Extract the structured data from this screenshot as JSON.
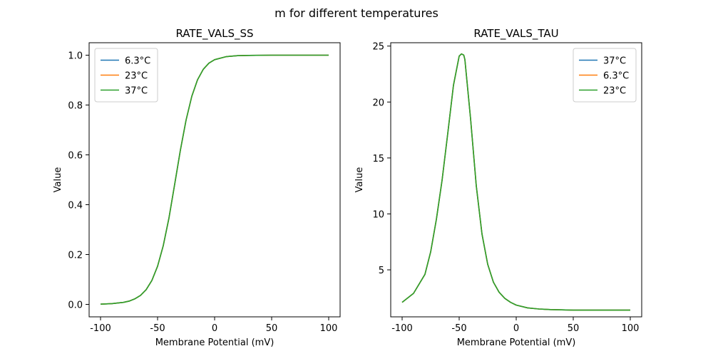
{
  "figure": {
    "suptitle": "m for different temperatures"
  },
  "chart_data": [
    {
      "type": "line",
      "title": "RATE_VALS_SS",
      "xlabel": "Membrane Potential (mV)",
      "ylabel": "Value",
      "xlim": [
        -110,
        110
      ],
      "ylim": [
        -0.05,
        1.05
      ],
      "xticks": [
        -100,
        -50,
        0,
        50,
        100
      ],
      "yticks": [
        0.0,
        0.2,
        0.4,
        0.6,
        0.8,
        1.0
      ],
      "ytick_labels": [
        "0.0",
        "0.2",
        "0.4",
        "0.6",
        "0.8",
        "1.0"
      ],
      "grid": false,
      "legend_position": "top-left",
      "x": [
        -100,
        -90,
        -80,
        -75,
        -70,
        -65,
        -60,
        -55,
        -50,
        -45,
        -40,
        -35,
        -30,
        -25,
        -20,
        -15,
        -10,
        -5,
        0,
        10,
        20,
        30,
        50,
        75,
        100
      ],
      "series": [
        {
          "name": "6.3°C",
          "color": "#1f77b4",
          "values": [
            0.001,
            0.003,
            0.008,
            0.013,
            0.022,
            0.036,
            0.059,
            0.096,
            0.153,
            0.236,
            0.347,
            0.482,
            0.619,
            0.74,
            0.835,
            0.901,
            0.943,
            0.968,
            0.982,
            0.994,
            0.998,
            0.999,
            1.0,
            1.0,
            1.0
          ]
        },
        {
          "name": "23°C",
          "color": "#ff7f0e",
          "values": [
            0.001,
            0.003,
            0.008,
            0.013,
            0.022,
            0.036,
            0.059,
            0.096,
            0.153,
            0.236,
            0.347,
            0.482,
            0.619,
            0.74,
            0.835,
            0.901,
            0.943,
            0.968,
            0.982,
            0.994,
            0.998,
            0.999,
            1.0,
            1.0,
            1.0
          ]
        },
        {
          "name": "37°C",
          "color": "#2ca02c",
          "values": [
            0.001,
            0.003,
            0.008,
            0.013,
            0.022,
            0.036,
            0.059,
            0.096,
            0.153,
            0.236,
            0.347,
            0.482,
            0.619,
            0.74,
            0.835,
            0.901,
            0.943,
            0.968,
            0.982,
            0.994,
            0.998,
            0.999,
            1.0,
            1.0,
            1.0
          ]
        }
      ]
    },
    {
      "type": "line",
      "title": "RATE_VALS_TAU",
      "xlabel": "Membrane Potential (mV)",
      "ylabel": "Value",
      "xlim": [
        -110,
        110
      ],
      "ylim": [
        0.8,
        25.3
      ],
      "xticks": [
        -100,
        -50,
        0,
        50,
        100
      ],
      "yticks": [
        5,
        10,
        15,
        20,
        25
      ],
      "ytick_labels": [
        "5",
        "10",
        "15",
        "20",
        "25"
      ],
      "grid": false,
      "legend_position": "top-right",
      "x": [
        -100,
        -90,
        -80,
        -75,
        -70,
        -65,
        -60,
        -55,
        -50,
        -48,
        -46,
        -45,
        -40,
        -35,
        -30,
        -25,
        -20,
        -15,
        -10,
        -5,
        0,
        10,
        20,
        30,
        50,
        75,
        100
      ],
      "series": [
        {
          "name": "37°C",
          "color": "#1f77b4",
          "values": [
            2.1,
            2.9,
            4.6,
            6.6,
            9.5,
            13.0,
            17.2,
            21.5,
            24.1,
            24.3,
            24.2,
            23.8,
            18.5,
            12.5,
            8.2,
            5.5,
            3.9,
            3.0,
            2.45,
            2.1,
            1.85,
            1.6,
            1.5,
            1.45,
            1.4,
            1.4,
            1.4
          ]
        },
        {
          "name": "6.3°C",
          "color": "#ff7f0e",
          "values": [
            2.1,
            2.9,
            4.6,
            6.6,
            9.5,
            13.0,
            17.2,
            21.5,
            24.1,
            24.3,
            24.2,
            23.8,
            18.5,
            12.5,
            8.2,
            5.5,
            3.9,
            3.0,
            2.45,
            2.1,
            1.85,
            1.6,
            1.5,
            1.45,
            1.4,
            1.4,
            1.4
          ]
        },
        {
          "name": "23°C",
          "color": "#2ca02c",
          "values": [
            2.1,
            2.9,
            4.6,
            6.6,
            9.5,
            13.0,
            17.2,
            21.5,
            24.1,
            24.3,
            24.2,
            23.8,
            18.5,
            12.5,
            8.2,
            5.5,
            3.9,
            3.0,
            2.45,
            2.1,
            1.85,
            1.6,
            1.5,
            1.45,
            1.4,
            1.4,
            1.4
          ]
        }
      ]
    }
  ]
}
